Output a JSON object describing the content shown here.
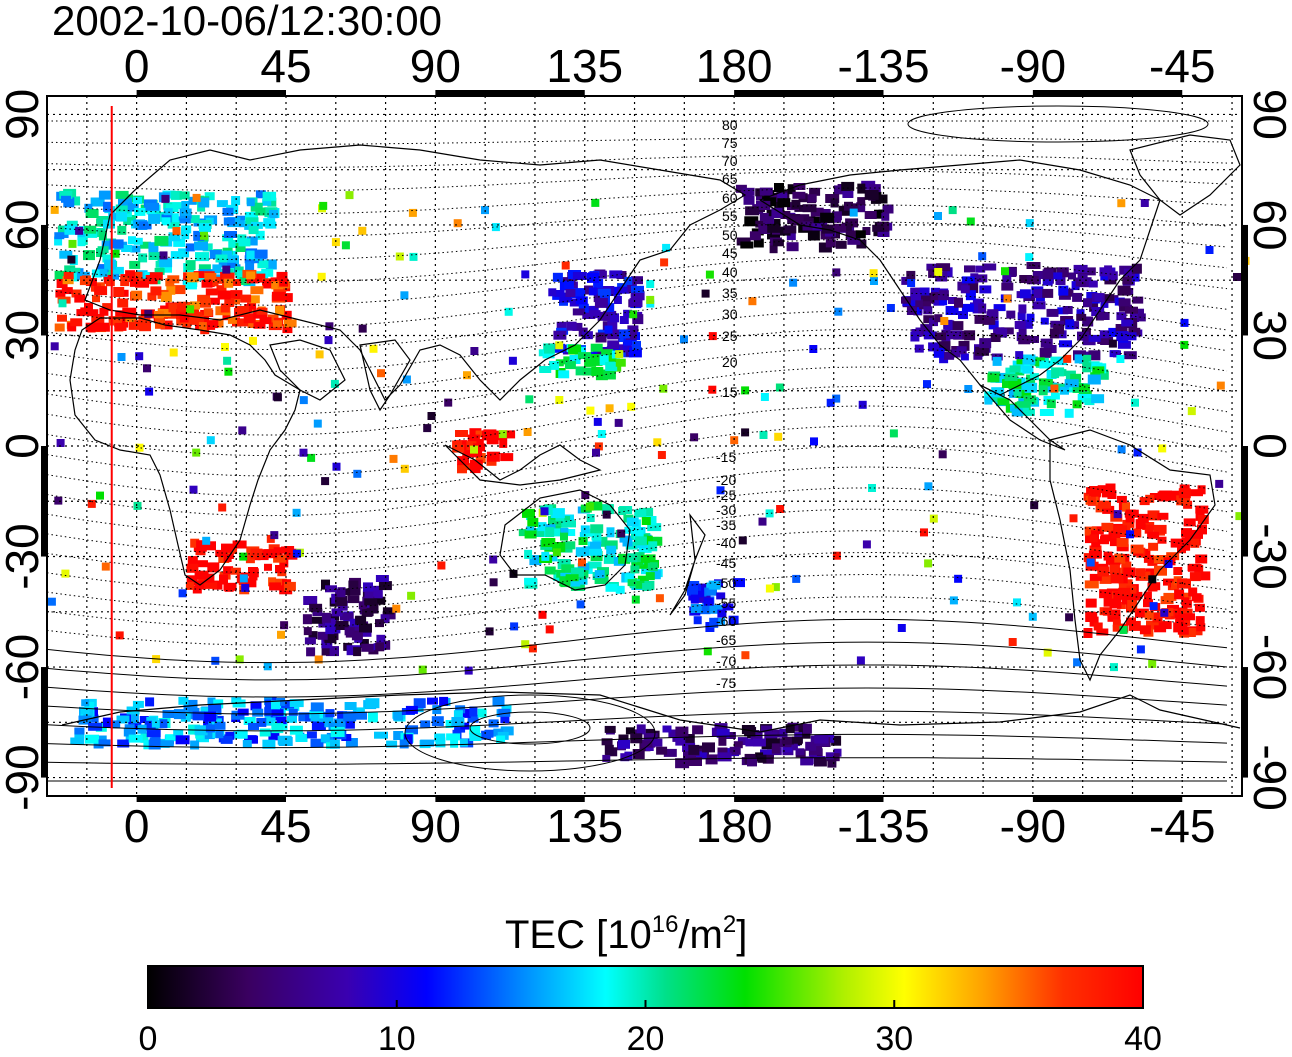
{
  "title": "2002-10-06/12:30:00",
  "map": {
    "lon_range": [
      -27,
      333
    ],
    "lat_range": [
      -95,
      95
    ],
    "top_lon_ticks": [
      "0",
      "45",
      "90",
      "135",
      "180",
      "-135",
      "-90",
      "-45"
    ],
    "bottom_lon_ticks": [
      "0",
      "45",
      "90",
      "135",
      "180",
      "-135",
      "-90",
      "-45"
    ],
    "left_lat_ticks": [
      "90",
      "60",
      "30",
      "0",
      "-30",
      "-60",
      "-90"
    ],
    "right_lat_ticks": [
      "90",
      "60",
      "30",
      "0",
      "-30",
      "-60",
      "-90"
    ],
    "marker_longitude": -7.5,
    "marker_color": "#ff0000",
    "contour_labels": [
      "80",
      "75",
      "70",
      "65",
      "60",
      "55",
      "50",
      "45",
      "40",
      "35",
      "30",
      "25",
      "20",
      "15",
      "-15",
      "-20",
      "-25",
      "-30",
      "-35",
      "-40",
      "-45",
      "-50",
      "-55",
      "-60",
      "-65",
      "-70",
      "-75"
    ]
  },
  "colorbar": {
    "title": "TEC  [10",
    "title_sup1": "16",
    "title_mid": "/m",
    "title_sup2": "2",
    "title_end": "]",
    "min": 0,
    "max": 40,
    "ticks": [
      "0",
      "10",
      "20",
      "30",
      "40"
    ],
    "colormap": "jet-like: black-purple-blue-cyan-green-yellow-red"
  },
  "chart_data": {
    "type": "heatmap",
    "title": "2002-10-06/12:30:00",
    "xlabel": "",
    "ylabel": "",
    "quantity": "TEC [10^16/m^2]",
    "value_range": [
      0,
      40
    ],
    "regions": [
      {
        "lon": [
          -25,
          40
        ],
        "lat": [
          45,
          70
        ],
        "tec": 18
      },
      {
        "lon": [
          -25,
          45
        ],
        "lat": [
          33,
          48
        ],
        "tec": 38
      },
      {
        "lon": [
          15,
          45
        ],
        "lat": [
          -38,
          -25
        ],
        "tec": 40
      },
      {
        "lon": [
          125,
          150
        ],
        "lat": [
          25,
          48
        ],
        "tec": 9
      },
      {
        "lon": [
          120,
          145
        ],
        "lat": [
          20,
          28
        ],
        "tec": 22
      },
      {
        "lon": [
          115,
          155
        ],
        "lat": [
          -38,
          -15
        ],
        "tec": 20
      },
      {
        "lon": [
          165,
          180
        ],
        "lat": [
          -48,
          -35
        ],
        "tec": 13
      },
      {
        "lon": [
          95,
          110
        ],
        "lat": [
          -5,
          5
        ],
        "tec": 40
      },
      {
        "lon": [
          50,
          75
        ],
        "lat": [
          -55,
          -35
        ],
        "tec": 5
      },
      {
        "lon": [
          230,
          300
        ],
        "lat": [
          25,
          50
        ],
        "tec": 7
      },
      {
        "lon": [
          255,
          290
        ],
        "lat": [
          10,
          25
        ],
        "tec": 20
      },
      {
        "lon": [
          285,
          320
        ],
        "lat": [
          -50,
          -10
        ],
        "tec": 40
      },
      {
        "lon": [
          180,
          225
        ],
        "lat": [
          55,
          72
        ],
        "tec": 3
      },
      {
        "lon": [
          -20,
          110
        ],
        "lat": [
          -80,
          -68
        ],
        "tec": 15
      },
      {
        "lon": [
          140,
          210
        ],
        "lat": [
          -85,
          -75
        ],
        "tec": 5
      }
    ]
  }
}
